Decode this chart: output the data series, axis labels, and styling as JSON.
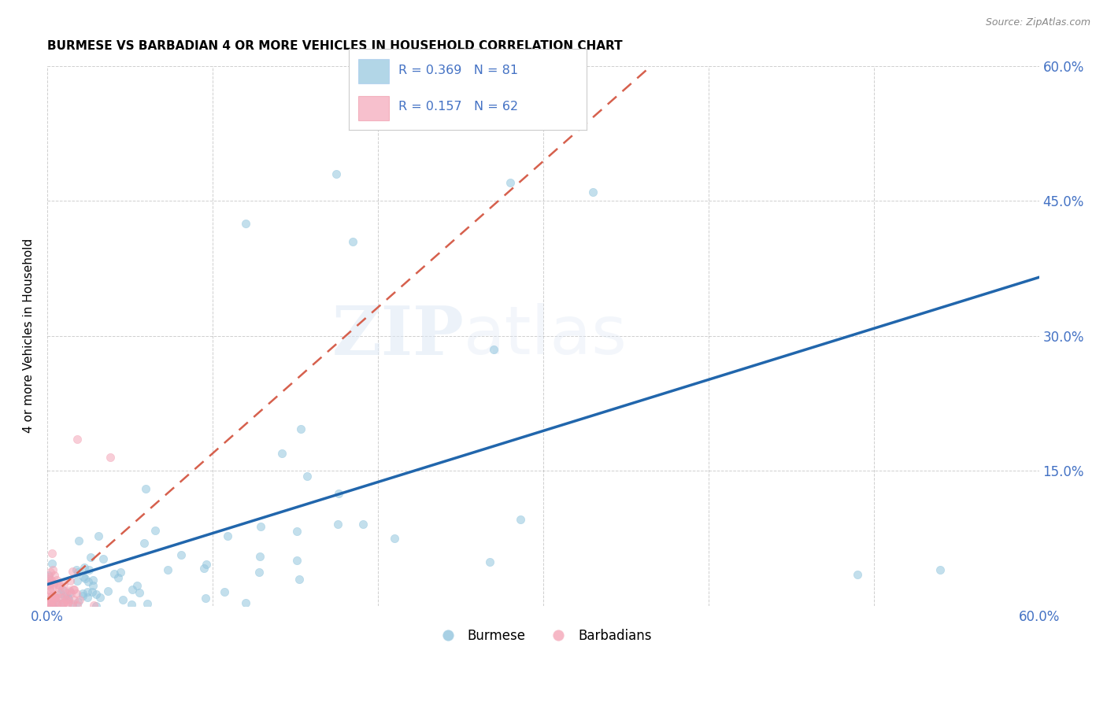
{
  "title": "BURMESE VS BARBADIAN 4 OR MORE VEHICLES IN HOUSEHOLD CORRELATION CHART",
  "source": "Source: ZipAtlas.com",
  "ylabel": "4 or more Vehicles in Household",
  "xlim": [
    0.0,
    0.6
  ],
  "ylim": [
    0.0,
    0.6
  ],
  "xtick_positions": [
    0.0,
    0.1,
    0.2,
    0.3,
    0.4,
    0.5,
    0.6
  ],
  "xtick_labels": [
    "0.0%",
    "",
    "",
    "",
    "",
    "",
    "60.0%"
  ],
  "ytick_positions": [
    0.0,
    0.15,
    0.3,
    0.45,
    0.6
  ],
  "ytick_labels_right": [
    "",
    "15.0%",
    "30.0%",
    "45.0%",
    "60.0%"
  ],
  "burmese_color": "#92c5de",
  "barbadian_color": "#f4a6b8",
  "regression_burmese_color": "#2166ac",
  "regression_barbadian_color": "#d6604d",
  "burmese_R": 0.369,
  "burmese_N": 81,
  "barbadian_R": 0.157,
  "barbadian_N": 62,
  "legend_label_burmese": "Burmese",
  "legend_label_barbadian": "Barbadians",
  "watermark_zip": "ZIP",
  "watermark_atlas": "atlas",
  "grid_color": "#b0b0b0",
  "background_color": "#ffffff",
  "axis_label_color": "#4472c4",
  "marker_size": 55,
  "marker_alpha": 0.55,
  "regression_line_intercept_burmese": 0.0,
  "regression_line_slope_burmese": 0.5,
  "regression_line_intercept_barbadian": 0.0,
  "regression_line_slope_barbadian": 0.42
}
